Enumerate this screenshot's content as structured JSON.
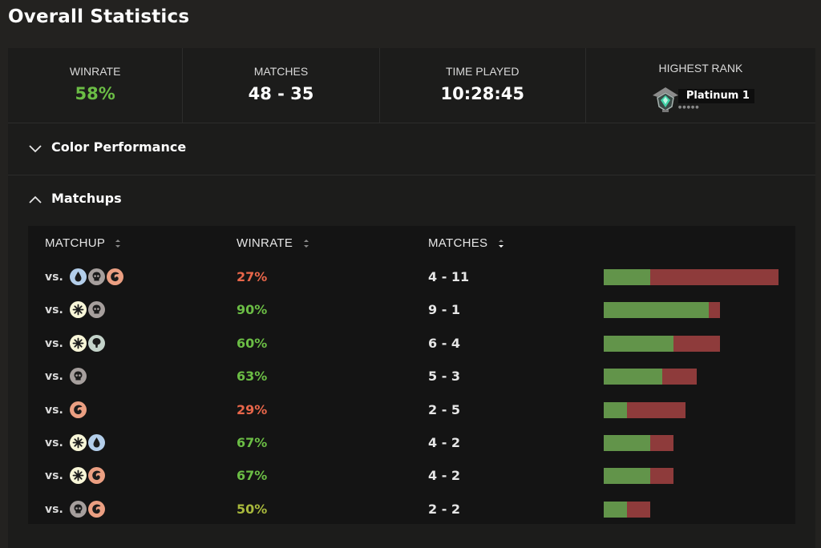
{
  "page": {
    "title": "Overall Statistics"
  },
  "stats": [
    {
      "label": "WINRATE",
      "value": "58%"
    },
    {
      "label": "MATCHES",
      "value": "48 - 35"
    },
    {
      "label": "TIME PLAYED",
      "value": "10:28:45"
    }
  ],
  "highest_rank": {
    "label": "HIGHEST RANK",
    "name": "Platinum 1",
    "icon": "platinum-rank-icon"
  },
  "sections": {
    "color_performance": {
      "title": "Color Performance",
      "expanded": false
    },
    "matchups": {
      "title": "Matchups",
      "expanded": true
    }
  },
  "table": {
    "columns": [
      "MATCHUP",
      "WINRATE",
      "MATCHES"
    ],
    "vs_label": "vs.",
    "rows": [
      {
        "colors": [
          "blue",
          "black",
          "red"
        ],
        "winrate": "27%",
        "matches": "4 - 11",
        "wins": 4,
        "losses": 11
      },
      {
        "colors": [
          "white",
          "black"
        ],
        "winrate": "90%",
        "matches": "9 - 1",
        "wins": 9,
        "losses": 1
      },
      {
        "colors": [
          "white",
          "green"
        ],
        "winrate": "60%",
        "matches": "6 - 4",
        "wins": 6,
        "losses": 4
      },
      {
        "colors": [
          "black"
        ],
        "winrate": "63%",
        "matches": "5 - 3",
        "wins": 5,
        "losses": 3
      },
      {
        "colors": [
          "red"
        ],
        "winrate": "29%",
        "matches": "2 - 5",
        "wins": 2,
        "losses": 5
      },
      {
        "colors": [
          "white",
          "blue"
        ],
        "winrate": "67%",
        "matches": "4 - 2",
        "wins": 4,
        "losses": 2
      },
      {
        "colors": [
          "white",
          "red"
        ],
        "winrate": "67%",
        "matches": "4 - 2",
        "wins": 4,
        "losses": 2
      },
      {
        "colors": [
          "black",
          "red"
        ],
        "winrate": "50%",
        "matches": "2 - 2",
        "wins": 2,
        "losses": 2
      }
    ]
  },
  "colors": {
    "win_bar": "#62944a",
    "loss_bar": "#8e3b3b",
    "winrate_high": "#6bbd45",
    "winrate_low": "#e8664a",
    "winrate_even": "#a8b83c"
  }
}
